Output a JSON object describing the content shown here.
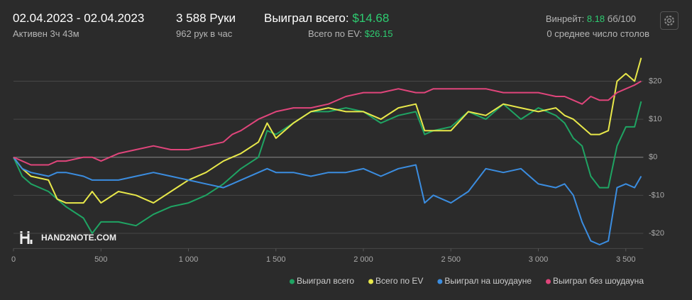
{
  "header": {
    "date_range": "02.04.2023 - 02.04.2023",
    "active": "Активен 3ч 43м",
    "hands": "3 588 Руки",
    "hands_per_hour": "962 рук в час",
    "won_label": "Выиграл всего:",
    "won_value": "$14.68",
    "ev_label": "Всего по EV:",
    "ev_value": "$26.15",
    "winrate_label": "Винрейт:",
    "winrate_value": "8.18",
    "winrate_unit": "бб/100",
    "tables": "0 среднее число столов",
    "watermark": "HAND2NOTE.COM"
  },
  "chart_data": {
    "type": "line",
    "x": [
      0,
      50,
      100,
      200,
      250,
      300,
      400,
      450,
      500,
      600,
      700,
      800,
      900,
      1000,
      1100,
      1200,
      1250,
      1300,
      1400,
      1450,
      1500,
      1600,
      1700,
      1800,
      1900,
      2000,
      2100,
      2200,
      2300,
      2350,
      2400,
      2500,
      2600,
      2700,
      2800,
      2900,
      3000,
      3100,
      3150,
      3200,
      3250,
      3300,
      3350,
      3400,
      3450,
      3500,
      3550,
      3588
    ],
    "series": [
      {
        "name": "Выиграл всего",
        "color": "#1fa463",
        "values": [
          0,
          -5,
          -7,
          -9,
          -11,
          -13,
          -16,
          -20,
          -17,
          -17,
          -18,
          -15,
          -13,
          -12,
          -10,
          -7,
          -5,
          -3,
          0,
          7,
          6,
          9,
          12,
          12,
          13,
          12,
          9,
          11,
          12,
          6,
          7,
          8,
          12,
          10,
          14,
          10,
          13,
          11,
          9,
          5,
          3,
          -5,
          -8,
          -8,
          3,
          8,
          8,
          14.68
        ]
      },
      {
        "name": "Всего по EV",
        "color": "#e8e84a",
        "values": [
          0,
          -3,
          -5,
          -6,
          -11,
          -12,
          -12,
          -9,
          -12,
          -9,
          -10,
          -12,
          -9,
          -6,
          -4,
          -1,
          0,
          1,
          4,
          9,
          5,
          9,
          12,
          13,
          12,
          12,
          10,
          13,
          14,
          7,
          7,
          7,
          12,
          11,
          14,
          13,
          12,
          13,
          11,
          10,
          8,
          6,
          6,
          7,
          20,
          22,
          20,
          26.15
        ]
      },
      {
        "name": "Выиграл на шоудауне",
        "color": "#3b8de0",
        "values": [
          0,
          -3,
          -4,
          -5,
          -4,
          -4,
          -5,
          -6,
          -6,
          -6,
          -5,
          -4,
          -5,
          -6,
          -7,
          -8,
          -7,
          -6,
          -4,
          -3,
          -4,
          -4,
          -5,
          -4,
          -4,
          -3,
          -5,
          -3,
          -2,
          -12,
          -10,
          -12,
          -9,
          -3,
          -4,
          -3,
          -7,
          -8,
          -7,
          -10,
          -17,
          -22,
          -23,
          -22,
          -8,
          -7,
          -8,
          -5
        ]
      },
      {
        "name": "Выиграл без шоудауна",
        "color": "#e0457b",
        "values": [
          0,
          -1,
          -2,
          -2,
          -1,
          -1,
          0,
          0,
          -1,
          1,
          2,
          3,
          2,
          2,
          3,
          4,
          6,
          7,
          10,
          11,
          12,
          13,
          13,
          14,
          16,
          17,
          17,
          18,
          17,
          17,
          18,
          18,
          18,
          18,
          17,
          17,
          17,
          16,
          16,
          15,
          14,
          16,
          15,
          15,
          17,
          18,
          19,
          20
        ]
      }
    ],
    "xlim": [
      0,
      3600
    ],
    "ylim": [
      -24,
      27
    ],
    "xticks": [
      0,
      500,
      {
        "value": 1000,
        "label": "1 000"
      },
      {
        "value": 1500,
        "label": "1 500"
      },
      {
        "value": 2000,
        "label": "2 000"
      },
      {
        "value": 2500,
        "label": "2 500"
      },
      {
        "value": 3000,
        "label": "3 000"
      },
      {
        "value": 3500,
        "label": "3 500"
      }
    ],
    "yticks": [
      {
        "value": 20,
        "label": "$20"
      },
      {
        "value": 10,
        "label": "$10"
      },
      {
        "value": 0,
        "label": "$0"
      },
      {
        "value": -10,
        "label": "-$10"
      },
      {
        "value": -20,
        "label": "-$20"
      }
    ],
    "grid": true,
    "legend": "bottom-right"
  }
}
